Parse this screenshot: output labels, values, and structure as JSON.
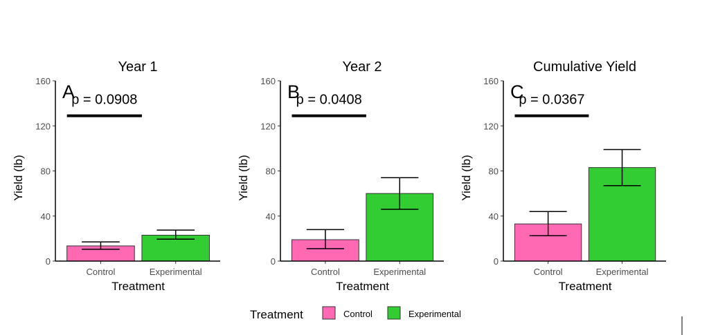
{
  "legend": {
    "title": "Treatment",
    "entries": [
      {
        "label": "Control",
        "color": "#ff69b4"
      },
      {
        "label": "Experimental",
        "color": "#32cd32"
      }
    ]
  },
  "chart_data": [
    {
      "type": "bar",
      "title": "Year 1",
      "panel_label": "A",
      "annotation": "p = 0.0908",
      "significance_bar_y": 129,
      "xlabel": "Treatment",
      "ylabel": "Yield (lb)",
      "ylim": [
        0,
        160
      ],
      "yticks": [
        0,
        40,
        80,
        120,
        160
      ],
      "categories": [
        "Control",
        "Experimental"
      ],
      "values": [
        13.5,
        23
      ],
      "error_low": [
        10.5,
        19.5
      ],
      "error_high": [
        17,
        27.5
      ],
      "colors": [
        "#ff69b4",
        "#32cd32"
      ]
    },
    {
      "type": "bar",
      "title": "Year 2",
      "panel_label": "B",
      "annotation": "p = 0.0408",
      "significance_bar_y": 129,
      "xlabel": "Treatment",
      "ylabel": "Yield (lb)",
      "ylim": [
        0,
        160
      ],
      "yticks": [
        0,
        40,
        80,
        120,
        160
      ],
      "categories": [
        "Control",
        "Experimental"
      ],
      "values": [
        19,
        60
      ],
      "error_low": [
        11,
        46
      ],
      "error_high": [
        28,
        74
      ],
      "colors": [
        "#ff69b4",
        "#32cd32"
      ]
    },
    {
      "type": "bar",
      "title": "Cumulative Yield",
      "panel_label": "C",
      "annotation": "p = 0.0367",
      "significance_bar_y": 129,
      "xlabel": "Treatment",
      "ylabel": "Yield (lb)",
      "ylim": [
        0,
        160
      ],
      "yticks": [
        0,
        40,
        80,
        120,
        160
      ],
      "categories": [
        "Control",
        "Experimental"
      ],
      "values": [
        33,
        83
      ],
      "error_low": [
        22.5,
        67
      ],
      "error_high": [
        44,
        99
      ],
      "colors": [
        "#ff69b4",
        "#32cd32"
      ]
    }
  ]
}
